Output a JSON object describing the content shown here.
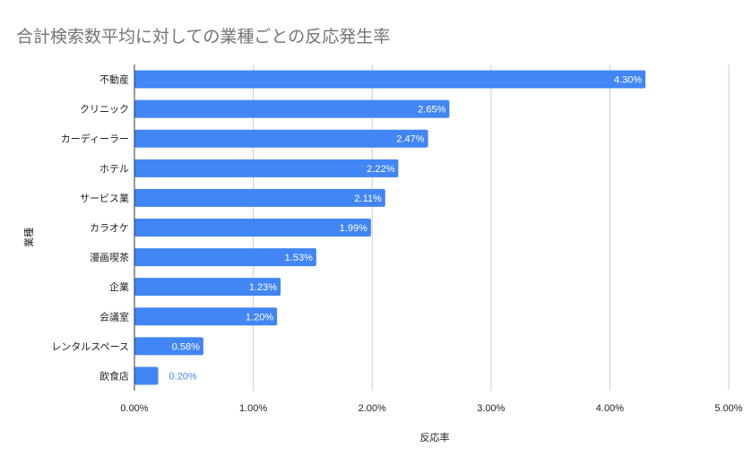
{
  "chart_data": {
    "type": "bar",
    "orientation": "horizontal",
    "title": "合計検索数平均に対しての業種ごとの反応発生率",
    "xlabel": "反応率",
    "ylabel": "業種",
    "categories": [
      "不動産",
      "クリニック",
      "カーディーラー",
      "ホテル",
      "サービス業",
      "カラオケ",
      "漫画喫茶",
      "企業",
      "会議室",
      "レンタルスペース",
      "飲食店"
    ],
    "values": [
      4.3,
      2.65,
      2.47,
      2.22,
      2.11,
      1.99,
      1.53,
      1.23,
      1.2,
      0.58,
      0.2
    ],
    "value_labels": [
      "4.30%",
      "2.65%",
      "2.47%",
      "2.22%",
      "2.11%",
      "1.99%",
      "1.53%",
      "1.23%",
      "1.20%",
      "0.58%",
      "0.20%"
    ],
    "xlim": [
      0,
      5
    ],
    "xticks": [
      0,
      1,
      2,
      3,
      4,
      5
    ],
    "xtick_labels": [
      "0.00%",
      "1.00%",
      "2.00%",
      "3.00%",
      "4.00%",
      "5.00%"
    ],
    "grid": true,
    "legend": "none",
    "colors": {
      "bar": "#4285f4",
      "label_inside": "#ffffff",
      "label_outside": "#4285f4",
      "grid": "#cccccc",
      "axis": "#333333"
    }
  }
}
